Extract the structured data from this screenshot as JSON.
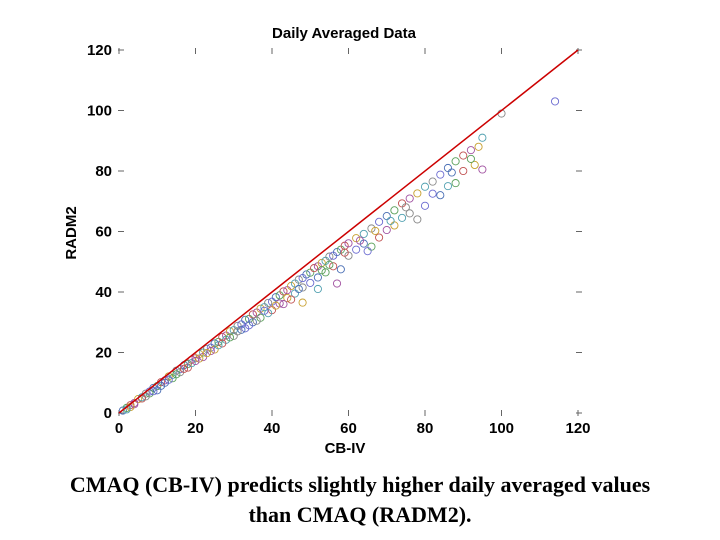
{
  "chart_data": {
    "type": "scatter",
    "title": "Daily Averaged Data",
    "xlabel": "CB-IV",
    "ylabel": "RADM2",
    "xlim": [
      0,
      120
    ],
    "ylim": [
      0,
      120
    ],
    "x_ticks": [
      "0",
      "20",
      "40",
      "60",
      "80",
      "100",
      "120"
    ],
    "y_ticks": [
      "0",
      "20",
      "40",
      "60",
      "80",
      "100",
      "120"
    ],
    "grid": false,
    "reference_line": {
      "x": [
        0,
        120
      ],
      "y": [
        0,
        120
      ],
      "color": "#cc0000"
    },
    "point_colors": [
      "#4a6fb5",
      "#5aa05a",
      "#c05050",
      "#a050a0",
      "#c8a030",
      "#50a0b0",
      "#888888",
      "#6a6ad0"
    ],
    "points": [
      [
        1,
        0.8
      ],
      [
        2,
        1.7
      ],
      [
        3,
        2.6
      ],
      [
        4,
        3.3
      ],
      [
        5,
        4.6
      ],
      [
        6,
        5.2
      ],
      [
        7,
        6.4
      ],
      [
        8,
        7.1
      ],
      [
        9,
        8.3
      ],
      [
        10,
        8.9
      ],
      [
        11,
        10.2
      ],
      [
        12,
        10.8
      ],
      [
        13,
        12.1
      ],
      [
        14,
        12.6
      ],
      [
        15,
        14.0
      ],
      [
        16,
        14.5
      ],
      [
        17,
        15.8
      ],
      [
        18,
        16.2
      ],
      [
        19,
        17.6
      ],
      [
        20,
        18.1
      ],
      [
        21,
        19.5
      ],
      [
        22,
        20.0
      ],
      [
        23,
        21.2
      ],
      [
        24,
        21.6
      ],
      [
        25,
        23.0
      ],
      [
        26,
        23.5
      ],
      [
        27,
        25.1
      ],
      [
        28,
        25.6
      ],
      [
        29,
        27.0
      ],
      [
        30,
        27.4
      ],
      [
        31,
        28.8
      ],
      [
        32,
        29.3
      ],
      [
        33,
        30.8
      ],
      [
        34,
        31.1
      ],
      [
        35,
        32.6
      ],
      [
        36,
        33.2
      ],
      [
        37,
        34.5
      ],
      [
        38,
        35.0
      ],
      [
        39,
        36.4
      ],
      [
        40,
        36.8
      ],
      [
        41,
        38.3
      ],
      [
        42,
        38.9
      ],
      [
        43,
        40.2
      ],
      [
        44,
        40.6
      ],
      [
        45,
        42.0
      ],
      [
        46,
        42.8
      ],
      [
        47,
        44.1
      ],
      [
        48,
        44.6
      ],
      [
        49,
        45.8
      ],
      [
        50,
        46.4
      ],
      [
        51,
        47.9
      ],
      [
        52,
        48.5
      ],
      [
        53,
        49.6
      ],
      [
        54,
        50.3
      ],
      [
        55,
        51.7
      ],
      [
        56,
        52.0
      ],
      [
        57,
        53.2
      ],
      [
        58,
        54.0
      ],
      [
        59,
        55.3
      ],
      [
        60,
        56.1
      ],
      [
        62,
        57.8
      ],
      [
        64,
        59.2
      ],
      [
        66,
        61.0
      ],
      [
        68,
        63.2
      ],
      [
        70,
        65.1
      ],
      [
        72,
        67.0
      ],
      [
        74,
        69.3
      ],
      [
        76,
        70.9
      ],
      [
        78,
        72.6
      ],
      [
        80,
        74.8
      ],
      [
        82,
        76.5
      ],
      [
        84,
        78.8
      ],
      [
        86,
        81.0
      ],
      [
        88,
        83.2
      ],
      [
        90,
        85.1
      ],
      [
        92,
        86.9
      ],
      [
        94,
        88.0
      ],
      [
        95,
        91.0
      ],
      [
        100,
        99.0
      ],
      [
        114,
        103.0
      ],
      [
        10,
        7.5
      ],
      [
        14,
        11.5
      ],
      [
        18,
        15.0
      ],
      [
        22,
        18.5
      ],
      [
        25,
        21.0
      ],
      [
        28,
        24.2
      ],
      [
        30,
        25.5
      ],
      [
        33,
        28.0
      ],
      [
        35,
        30.0
      ],
      [
        37,
        31.5
      ],
      [
        40,
        34.0
      ],
      [
        42,
        36.2
      ],
      [
        44,
        38.0
      ],
      [
        46,
        39.5
      ],
      [
        48,
        41.5
      ],
      [
        50,
        43.0
      ],
      [
        52,
        44.8
      ],
      [
        54,
        46.5
      ],
      [
        56,
        48.5
      ],
      [
        57,
        42.8
      ],
      [
        48,
        36.5
      ],
      [
        52,
        41.0
      ],
      [
        60,
        52.0
      ],
      [
        62,
        54.0
      ],
      [
        64,
        56.0
      ],
      [
        66,
        55.0
      ],
      [
        68,
        58.0
      ],
      [
        70,
        60.5
      ],
      [
        72,
        62.0
      ],
      [
        74,
        64.5
      ],
      [
        76,
        66.0
      ],
      [
        80,
        68.5
      ],
      [
        84,
        72.0
      ],
      [
        88,
        76.0
      ],
      [
        90,
        80.0
      ],
      [
        95,
        80.5
      ],
      [
        93,
        82.0
      ],
      [
        86,
        75.0
      ],
      [
        78,
        64.0
      ],
      [
        65,
        53.5
      ],
      [
        58,
        47.5
      ],
      [
        55,
        49.0
      ],
      [
        45,
        37.5
      ],
      [
        43,
        36.0
      ],
      [
        41,
        35.5
      ],
      [
        39,
        33.0
      ],
      [
        36,
        30.5
      ],
      [
        34,
        29.0
      ],
      [
        32,
        27.5
      ],
      [
        29,
        25.0
      ],
      [
        27,
        23.0
      ],
      [
        24,
        20.5
      ],
      [
        21,
        18.0
      ],
      [
        19,
        16.5
      ],
      [
        16,
        13.5
      ],
      [
        13,
        11.0
      ],
      [
        11,
        9.0
      ],
      [
        8,
        6.5
      ],
      [
        6,
        4.8
      ],
      [
        4,
        2.9
      ],
      [
        3,
        2.0
      ],
      [
        2,
        1.2
      ],
      [
        7,
        5.5
      ],
      [
        9,
        7.2
      ],
      [
        12,
        10.0
      ],
      [
        15,
        12.8
      ],
      [
        17,
        14.6
      ],
      [
        20,
        17.2
      ],
      [
        23,
        19.8
      ],
      [
        26,
        22.4
      ],
      [
        31,
        27.0
      ],
      [
        38,
        33.8
      ],
      [
        47,
        41.0
      ],
      [
        53,
        47.2
      ],
      [
        59,
        53.0
      ],
      [
        63,
        57.0
      ],
      [
        67,
        60.2
      ],
      [
        71,
        63.5
      ],
      [
        75,
        68.0
      ],
      [
        82,
        72.5
      ],
      [
        87,
        79.5
      ],
      [
        92,
        84.0
      ]
    ]
  },
  "caption": {
    "line1": "CMAQ (CB-IV) predicts slightly higher daily averaged values",
    "line2": "than CMAQ (RADM2)."
  }
}
